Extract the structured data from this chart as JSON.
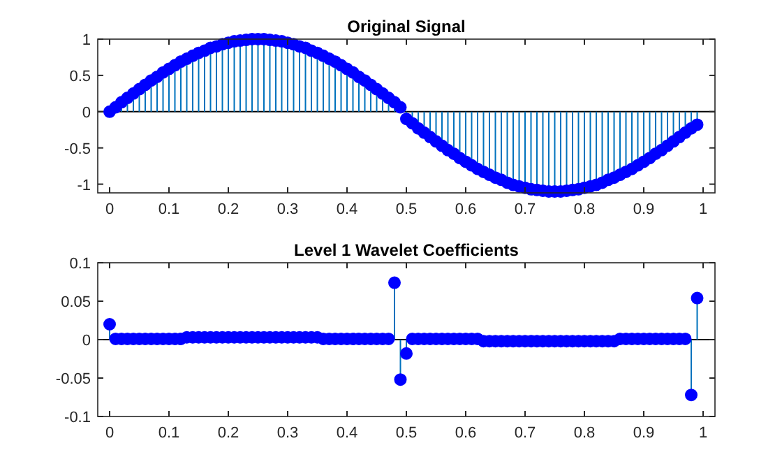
{
  "chart_data": [
    {
      "type": "lollipop",
      "title": "Original Signal",
      "xlim": [
        -0.02,
        1.02
      ],
      "xticks": [
        0,
        0.1,
        0.2,
        0.3,
        0.4,
        0.5,
        0.6,
        0.7,
        0.8,
        0.9,
        1
      ],
      "ylim": [
        -1.12,
        1
      ],
      "yticks": [
        -1,
        -0.5,
        0,
        0.5,
        1
      ],
      "marker": "circle",
      "x": [
        0,
        0.01,
        0.02,
        0.03,
        0.04,
        0.05,
        0.06,
        0.07,
        0.08,
        0.09,
        0.1,
        0.11,
        0.12,
        0.13,
        0.14,
        0.15,
        0.16,
        0.17,
        0.18,
        0.19,
        0.2,
        0.21,
        0.22,
        0.23,
        0.24,
        0.25,
        0.26,
        0.27,
        0.28,
        0.29,
        0.3,
        0.31,
        0.32,
        0.33,
        0.34,
        0.35,
        0.36,
        0.37,
        0.38,
        0.39,
        0.4,
        0.41,
        0.42,
        0.43,
        0.44,
        0.45,
        0.46,
        0.47,
        0.48,
        0.49,
        0.5,
        0.51,
        0.52,
        0.53,
        0.54,
        0.55,
        0.56,
        0.57,
        0.58,
        0.59,
        0.6,
        0.61,
        0.62,
        0.63,
        0.64,
        0.65,
        0.66,
        0.67,
        0.68,
        0.69,
        0.7,
        0.71,
        0.72,
        0.73,
        0.74,
        0.75,
        0.76,
        0.77,
        0.78,
        0.79,
        0.8,
        0.81,
        0.82,
        0.83,
        0.84,
        0.85,
        0.86,
        0.87,
        0.88,
        0.89,
        0.9,
        0.91,
        0.92,
        0.93,
        0.94,
        0.95,
        0.96,
        0.97,
        0.98,
        0.99
      ],
      "series": [
        {
          "color": "#0000ff",
          "values": [
            0,
            0.06,
            0.13,
            0.19,
            0.25,
            0.31,
            0.37,
            0.43,
            0.48,
            0.54,
            0.59,
            0.64,
            0.69,
            0.73,
            0.77,
            0.81,
            0.84,
            0.88,
            0.9,
            0.93,
            0.95,
            0.97,
            0.98,
            0.99,
            1,
            1,
            1,
            0.99,
            0.98,
            0.97,
            0.95,
            0.93,
            0.9,
            0.88,
            0.84,
            0.81,
            0.77,
            0.73,
            0.69,
            0.64,
            0.59,
            0.54,
            0.48,
            0.43,
            0.37,
            0.31,
            0.25,
            0.19,
            0.13,
            0.06,
            -0.1,
            -0.16,
            -0.23,
            -0.29,
            -0.35,
            -0.41,
            -0.47,
            -0.53,
            -0.58,
            -0.64,
            -0.69,
            -0.74,
            -0.79,
            -0.83,
            -0.87,
            -0.91,
            -0.94,
            -0.98,
            -1.01,
            -1.03,
            -1.05,
            -1.07,
            -1.08,
            -1.09,
            -1.1,
            -1.1,
            -1.1,
            -1.09,
            -1.08,
            -1.07,
            -1.05,
            -1.03,
            -1.01,
            -0.98,
            -0.94,
            -0.91,
            -0.87,
            -0.83,
            -0.79,
            -0.74,
            -0.69,
            -0.64,
            -0.58,
            -0.53,
            -0.47,
            -0.41,
            -0.35,
            -0.29,
            -0.23,
            -0.18
          ]
        }
      ]
    },
    {
      "type": "lollipop",
      "title": "Level 1 Wavelet Coefficients",
      "xlim": [
        -0.02,
        1.02
      ],
      "xticks": [
        0,
        0.1,
        0.2,
        0.3,
        0.4,
        0.5,
        0.6,
        0.7,
        0.8,
        0.9,
        1
      ],
      "ylim": [
        -0.1,
        0.1
      ],
      "yticks": [
        -0.1,
        -0.05,
        0,
        0.05,
        0.1
      ],
      "marker": "circle",
      "x": [
        0,
        0.01,
        0.02,
        0.03,
        0.04,
        0.05,
        0.06,
        0.07,
        0.08,
        0.09,
        0.1,
        0.11,
        0.12,
        0.13,
        0.14,
        0.15,
        0.16,
        0.17,
        0.18,
        0.19,
        0.2,
        0.21,
        0.22,
        0.23,
        0.24,
        0.25,
        0.26,
        0.27,
        0.28,
        0.29,
        0.3,
        0.31,
        0.32,
        0.33,
        0.34,
        0.35,
        0.36,
        0.37,
        0.38,
        0.39,
        0.4,
        0.41,
        0.42,
        0.43,
        0.44,
        0.45,
        0.46,
        0.47,
        0.48,
        0.49,
        0.5,
        0.51,
        0.52,
        0.53,
        0.54,
        0.55,
        0.56,
        0.57,
        0.58,
        0.59,
        0.6,
        0.61,
        0.62,
        0.63,
        0.64,
        0.65,
        0.66,
        0.67,
        0.68,
        0.69,
        0.7,
        0.71,
        0.72,
        0.73,
        0.74,
        0.75,
        0.76,
        0.77,
        0.78,
        0.79,
        0.8,
        0.81,
        0.82,
        0.83,
        0.84,
        0.85,
        0.86,
        0.87,
        0.88,
        0.89,
        0.9,
        0.91,
        0.92,
        0.93,
        0.94,
        0.95,
        0.96,
        0.97,
        0.98,
        0.99
      ],
      "series": [
        {
          "color": "#0000ff",
          "values": [
            0.02,
            0.001,
            0.001,
            0.001,
            0.001,
            0.001,
            0.001,
            0.001,
            0.001,
            0.001,
            0.001,
            0.001,
            0.001,
            0.003,
            0.003,
            0.003,
            0.003,
            0.003,
            0.003,
            0.003,
            0.003,
            0.003,
            0.003,
            0.003,
            0.003,
            0.003,
            0.003,
            0.003,
            0.003,
            0.003,
            0.003,
            0.003,
            0.003,
            0.003,
            0.003,
            0.003,
            0.001,
            0.001,
            0.001,
            0.001,
            0.001,
            0.001,
            0.001,
            0.001,
            0.001,
            0.001,
            0.001,
            0.001,
            0.074,
            -0.052,
            -0.018,
            0.001,
            0.001,
            0.001,
            0.001,
            0.001,
            0.001,
            0.001,
            0.001,
            0.001,
            0.001,
            0.001,
            0.001,
            -0.002,
            -0.002,
            -0.002,
            -0.002,
            -0.002,
            -0.002,
            -0.002,
            -0.002,
            -0.002,
            -0.002,
            -0.002,
            -0.002,
            -0.002,
            -0.002,
            -0.002,
            -0.002,
            -0.002,
            -0.002,
            -0.002,
            -0.002,
            -0.002,
            -0.002,
            -0.002,
            0.001,
            0.001,
            0.001,
            0.001,
            0.001,
            0.001,
            0.001,
            0.001,
            0.001,
            0.001,
            0.001,
            0.001,
            -0.072,
            0.054
          ]
        }
      ]
    }
  ]
}
